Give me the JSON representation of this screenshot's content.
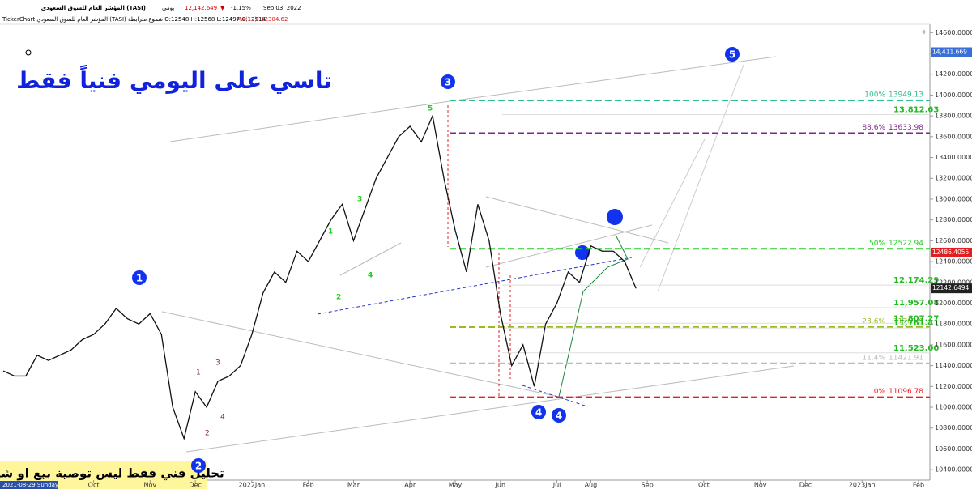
{
  "header": {
    "symbol": "المؤشر العام للسوق السعودي (TASI)",
    "period": "يومي",
    "last": "12,142.649",
    "change": "-1.15%",
    "date": "Sep 03, 2022",
    "ohlc": "TickerChart المؤشر العام للسوق السعودي (TASI) شموع مترابطة O:12548 H:12568 L:12497 C:12514",
    "ma_label": "MA(13)",
    "ma_value": "12304.62"
  },
  "chart_data": {
    "type": "line",
    "title": "تاسي على اليومي فنياً فقط",
    "disclaimer": "تحليل فني فقط  ليس توصية بيع او شراء",
    "cursor_date": "2021-08-29 Sunday",
    "categories": [
      null,
      null,
      null,
      null,
      null,
      null,
      null,
      null,
      "Oct",
      null,
      null,
      null,
      null,
      "Nov",
      null,
      null,
      null,
      "Dec",
      null,
      null,
      null,
      null,
      "2022Jan",
      null,
      null,
      null,
      null,
      "Feb",
      null,
      null,
      null,
      "Mar",
      null,
      null,
      null,
      null,
      "Apr",
      null,
      null,
      null,
      "May",
      null,
      null,
      null,
      "Jun",
      null,
      null,
      null,
      null,
      "Jul",
      null,
      null,
      "Aug",
      null,
      null,
      null,
      null,
      "Sep",
      null,
      null,
      null,
      null,
      "Oct",
      null,
      null,
      null,
      null,
      "Nov",
      null,
      null,
      null,
      "Dec",
      null,
      null,
      null,
      null,
      "2023Jan",
      null,
      null,
      null,
      null,
      "Feb"
    ],
    "series": [
      {
        "color": "#111111",
        "values": [
          11350,
          11300,
          11300,
          11500,
          11450,
          11500,
          11550,
          11650,
          11700,
          11800,
          11950,
          11850,
          11800,
          11900,
          11700,
          11000,
          10700,
          11150,
          11000,
          11250,
          11300,
          11400,
          11700,
          12100,
          12300,
          12200,
          12500,
          12400,
          12600,
          12800,
          12950,
          12600,
          12900,
          13200,
          13400,
          13600,
          13700,
          13550,
          13800,
          13200,
          12700,
          12300,
          12950,
          12600,
          11900,
          11400,
          11600,
          11200,
          11800,
          12000,
          12300,
          12200,
          12550,
          12500,
          12500,
          12400,
          12142,
          null,
          null,
          null,
          null,
          null,
          null,
          null,
          null,
          null,
          null,
          null,
          null,
          null,
          null,
          null,
          null,
          null,
          null,
          null,
          null,
          null,
          null,
          null,
          null,
          null
        ]
      }
    ],
    "ylim": [
      10300,
      14680
    ],
    "yticks": [
      {
        "value": 14600,
        "label": "14600.0000"
      },
      {
        "value": 14400,
        "label": "14400.0000"
      },
      {
        "value": 14200,
        "label": "14200.0000"
      },
      {
        "value": 14000,
        "label": "14000.0000"
      },
      {
        "value": 13800,
        "label": "13800.0000"
      },
      {
        "value": 13600,
        "label": "13600.0000"
      },
      {
        "value": 13400,
        "label": "13400.0000"
      },
      {
        "value": 13200,
        "label": "13200.0000"
      },
      {
        "value": 13000,
        "label": "13000.0000"
      },
      {
        "value": 12800,
        "label": "12800.0000"
      },
      {
        "value": 12600,
        "label": "12600.0000"
      },
      {
        "value": 12400,
        "label": "12400.0000"
      },
      {
        "value": 12200,
        "label": "12200.0000"
      },
      {
        "value": 12000,
        "label": "12000.0000"
      },
      {
        "value": 11800,
        "label": "11800.0000"
      },
      {
        "value": 11600,
        "label": "11600.0000"
      },
      {
        "value": 11400,
        "label": "11400.0000"
      },
      {
        "value": 11200,
        "label": "11200.0000"
      },
      {
        "value": 11000,
        "label": "11000.0000"
      },
      {
        "value": 10800,
        "label": "10800.0000"
      },
      {
        "value": 10600,
        "label": "10600.0000"
      },
      {
        "value": 10400,
        "label": "10400.0000"
      }
    ],
    "markers": [
      {
        "value": 14411.669,
        "label": "14,411.669",
        "color": "#3a6fd8"
      },
      {
        "value": 12486.4055,
        "label": "12486.4055",
        "color": "#e02020"
      },
      {
        "value": 12142.6494,
        "label": "12142.6494",
        "color": "#222222"
      }
    ],
    "fib_levels": [
      {
        "percent": "100%",
        "value": 13949.13,
        "color": "#2fbf8f"
      },
      {
        "percent": "88.6%",
        "value": 13633.98,
        "color": "#7a2a8a"
      },
      {
        "percent": "50%",
        "value": 12522.94,
        "color": "#22cc22"
      },
      {
        "percent": "23.6%",
        "value": 11769.9,
        "color": "#99bb22"
      },
      {
        "percent": "11.4%",
        "value": 11421.91,
        "color": "#bbbbbb"
      },
      {
        "percent": "0%",
        "value": 11096.78,
        "color": "#e82020"
      }
    ],
    "price_labels": [
      {
        "value": 13812.63,
        "label": "13,812.63"
      },
      {
        "value": 12174.29,
        "label": "12,174.29"
      },
      {
        "value": 11957.08,
        "label": "11,957.08"
      },
      {
        "value": 11807.27,
        "label": "11,807.27"
      },
      {
        "value": 11761.41,
        "label": "11,761.41"
      },
      {
        "value": 11523.0,
        "label": "11,523.00"
      }
    ],
    "waves": [
      "1",
      "2",
      "3",
      "4",
      "4",
      "5"
    ],
    "sub_waves_green": [
      "1",
      "2",
      "3",
      "4",
      "5"
    ],
    "sub_waves_purple": [
      "1",
      "2",
      "3",
      "4"
    ]
  }
}
